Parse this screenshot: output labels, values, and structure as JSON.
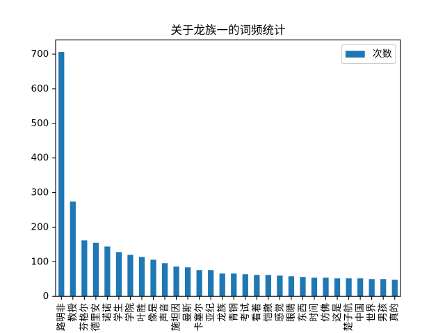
{
  "chart_data": {
    "type": "bar",
    "title": "关于龙族一的词频统计",
    "xlabel": "",
    "ylabel": "",
    "categories": [
      "路明非",
      "教授",
      "芬格尔",
      "德里安",
      "诺诺",
      "学生",
      "学院",
      "叶胜",
      "像是",
      "声音",
      "施坦因",
      "曼斯",
      "卡塞尔",
      "亚纪",
      "龙族",
      "青铜",
      "考试",
      "看着",
      "恺撒",
      "感觉",
      "眼睛",
      "东西",
      "时间",
      "仿佛",
      "这是",
      "楚子航",
      "中国",
      "世界",
      "男孩",
      "真的"
    ],
    "series": [
      {
        "name": "次数",
        "color": "#1f77b4",
        "values": [
          706,
          274,
          162,
          155,
          144,
          128,
          120,
          114,
          106,
          96,
          86,
          84,
          76,
          76,
          66,
          66,
          64,
          62,
          62,
          60,
          58,
          56,
          54,
          54,
          52,
          52,
          52,
          50,
          50,
          48
        ]
      }
    ],
    "ylim": [
      0,
      741
    ],
    "yticks": [
      0,
      100,
      200,
      300,
      400,
      500,
      600,
      700
    ],
    "legend": "top-right",
    "grid": false
  }
}
